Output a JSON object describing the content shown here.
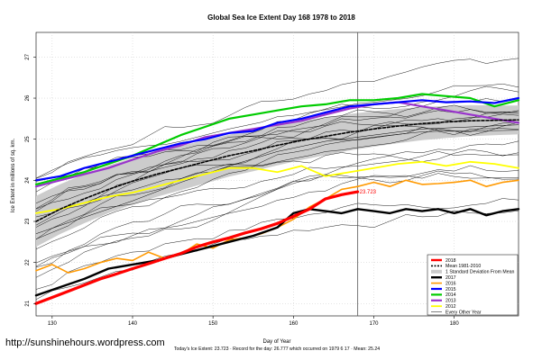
{
  "chart_data": {
    "type": "line",
    "title": "Global Sea Ice Extent Day 168 1978 to 2018",
    "xlabel": "Day of Year",
    "ylabel": "Ice Extent in millions of sq. km.",
    "xlim": [
      128,
      188
    ],
    "ylim": [
      20.7,
      27.6
    ],
    "x_ticks": [
      130,
      140,
      150,
      160,
      170,
      180
    ],
    "y_ticks": [
      21,
      22,
      23,
      24,
      25,
      26,
      27
    ],
    "grid": true,
    "vline_day": 168,
    "current_value_label": "23.723",
    "legend_position": "bottom-right",
    "legend": [
      "2018",
      "Mean 1981-2010",
      "1 Standard Deviation From Mean",
      "2017",
      "2016",
      "2015",
      "2014",
      "2013",
      "2012",
      "Every Other Year"
    ],
    "series": [
      {
        "name": "2018",
        "color": "#ff0000",
        "width": 3.2,
        "x": [
          128,
          130,
          132,
          134,
          136,
          138,
          140,
          142,
          144,
          146,
          148,
          150,
          152,
          154,
          156,
          158,
          160,
          162,
          164,
          166,
          168
        ],
        "y": [
          21.0,
          21.15,
          21.3,
          21.45,
          21.6,
          21.72,
          21.85,
          21.97,
          22.1,
          22.22,
          22.38,
          22.5,
          22.6,
          22.72,
          22.82,
          22.95,
          23.12,
          23.3,
          23.55,
          23.65,
          23.72
        ]
      },
      {
        "name": "Mean 1981-2010",
        "color": "#000000",
        "width": 1.6,
        "dashed": true,
        "x": [
          128,
          131,
          134,
          137,
          140,
          143,
          146,
          149,
          152,
          155,
          158,
          161,
          164,
          167,
          170,
          173,
          176,
          179,
          182,
          185,
          188
        ],
        "y": [
          23.0,
          23.3,
          23.55,
          23.78,
          23.98,
          24.15,
          24.3,
          24.45,
          24.6,
          24.72,
          24.85,
          24.97,
          25.07,
          25.17,
          25.25,
          25.32,
          25.38,
          25.42,
          25.45,
          25.46,
          25.47
        ]
      },
      {
        "name": "2017",
        "color": "#000000",
        "width": 2.4,
        "x": [
          128,
          131,
          134,
          137,
          140,
          143,
          146,
          149,
          152,
          155,
          158,
          160,
          162,
          164,
          166,
          168,
          170,
          172,
          174,
          176,
          178,
          180,
          182,
          184,
          186,
          188
        ],
        "y": [
          21.2,
          21.4,
          21.6,
          21.85,
          21.95,
          22.05,
          22.2,
          22.35,
          22.5,
          22.65,
          22.85,
          23.2,
          23.3,
          23.25,
          23.2,
          23.3,
          23.25,
          23.2,
          23.3,
          23.25,
          23.3,
          23.2,
          23.3,
          23.15,
          23.25,
          23.3
        ]
      },
      {
        "name": "2016",
        "color": "#ff9900",
        "width": 1.6,
        "x": [
          128,
          130,
          132,
          134,
          136,
          138,
          140,
          142,
          144,
          146,
          148,
          150,
          152,
          154,
          156,
          158,
          160,
          162,
          164,
          166,
          168,
          170,
          172,
          174,
          176,
          178,
          180,
          182,
          184,
          186,
          188
        ],
        "y": [
          21.8,
          21.95,
          21.75,
          21.85,
          22.0,
          22.1,
          22.05,
          22.25,
          22.1,
          22.2,
          22.45,
          22.35,
          22.55,
          22.6,
          22.7,
          22.85,
          23.05,
          23.35,
          23.55,
          23.78,
          23.85,
          23.95,
          23.85,
          24.0,
          23.9,
          23.92,
          23.95,
          24.0,
          23.85,
          23.95,
          24.0
        ]
      },
      {
        "name": "2015",
        "color": "#0000ff",
        "width": 2.2,
        "x": [
          128,
          131,
          134,
          137,
          140,
          143,
          146,
          149,
          152,
          155,
          158,
          161,
          164,
          167,
          170,
          173,
          176,
          179,
          182,
          185,
          188
        ],
        "y": [
          24.0,
          24.1,
          24.3,
          24.45,
          24.6,
          24.75,
          24.9,
          25.0,
          25.15,
          25.2,
          25.4,
          25.5,
          25.65,
          25.8,
          25.85,
          25.9,
          25.95,
          25.9,
          25.92,
          25.88,
          26.0
        ]
      },
      {
        "name": "2014",
        "color": "#00cc00",
        "width": 2.2,
        "x": [
          128,
          131,
          134,
          137,
          140,
          143,
          146,
          149,
          152,
          155,
          158,
          161,
          164,
          167,
          170,
          173,
          176,
          179,
          182,
          185,
          188
        ],
        "y": [
          23.9,
          24.05,
          24.2,
          24.4,
          24.6,
          24.85,
          25.1,
          25.3,
          25.5,
          25.6,
          25.7,
          25.8,
          25.85,
          25.95,
          25.95,
          26.0,
          26.1,
          26.05,
          26.0,
          25.8,
          25.95
        ]
      },
      {
        "name": "2013",
        "color": "#9933cc",
        "width": 2.2,
        "x": [
          128,
          131,
          134,
          137,
          140,
          143,
          146,
          149,
          152,
          155,
          158,
          161,
          164,
          167,
          170,
          173,
          176,
          179,
          182,
          185,
          188
        ],
        "y": [
          23.85,
          24.0,
          24.15,
          24.3,
          24.5,
          24.7,
          24.85,
          25.05,
          25.15,
          25.25,
          25.35,
          25.45,
          25.6,
          25.75,
          25.85,
          25.9,
          25.8,
          25.7,
          25.6,
          25.5,
          25.4
        ]
      },
      {
        "name": "2012",
        "color": "#ffff00",
        "width": 1.8,
        "x": [
          128,
          131,
          134,
          137,
          140,
          143,
          146,
          149,
          152,
          155,
          158,
          161,
          164,
          167,
          170,
          173,
          176,
          179,
          182,
          185,
          188
        ],
        "y": [
          23.2,
          23.3,
          23.45,
          23.6,
          23.7,
          23.85,
          24.0,
          24.15,
          24.3,
          24.3,
          24.2,
          24.35,
          24.1,
          24.2,
          24.3,
          24.4,
          24.45,
          24.35,
          24.45,
          24.4,
          24.3
        ]
      },
      {
        "name": "Every Other Year",
        "color": "#000000",
        "width": 0.5,
        "x": [
          128,
          134,
          140,
          146,
          152,
          158,
          164,
          170,
          176,
          182,
          188
        ],
        "y": [
          22.7,
          23.1,
          23.5,
          23.95,
          24.35,
          24.7,
          24.95,
          25.1,
          25.25,
          25.3,
          25.35
        ]
      }
    ]
  },
  "watermark": "http://sunshinehours.wordpress.com",
  "footer": "Today's Ice Extent: 23.723  · Record for the day: 26.777 which occurred on 1979 6 17  · Mean: 25.24"
}
